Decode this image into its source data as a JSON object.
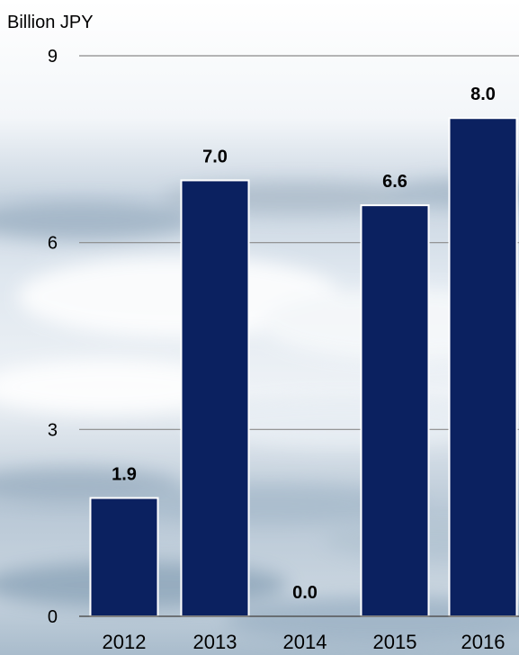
{
  "chart_data": {
    "type": "bar",
    "ylabel": "Billion JPY",
    "categories": [
      "2012",
      "2013",
      "2014",
      "2015",
      "2016"
    ],
    "values": [
      1.9,
      7.0,
      0.0,
      6.6,
      8.0
    ],
    "value_labels": [
      "1.9",
      "7.0",
      "0.0",
      "6.6",
      "8.0"
    ],
    "yticks": [
      "0",
      "3",
      "6",
      "9"
    ],
    "ylim": [
      0,
      9
    ],
    "grid": true,
    "bar_color": "#0b2160",
    "background": "ocean wave photo"
  }
}
